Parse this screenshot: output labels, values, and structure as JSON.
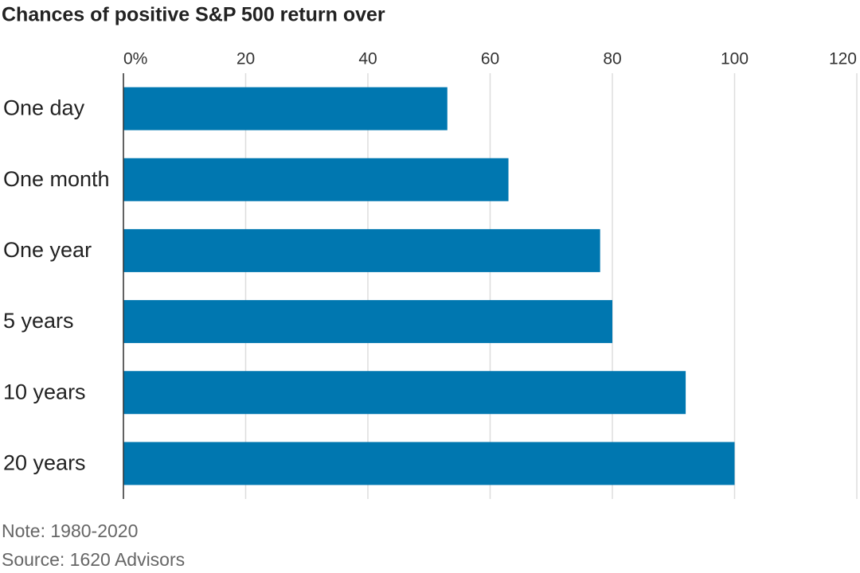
{
  "chart_data": {
    "type": "bar",
    "orientation": "horizontal",
    "title": "Chances of positive S&P 500 return over",
    "categories": [
      "One day",
      "One month",
      "One year",
      "5 years",
      "10 years",
      "20 years"
    ],
    "values": [
      53,
      63,
      78,
      80,
      92,
      100
    ],
    "color": "#0077b0",
    "xlim": [
      0,
      120
    ],
    "xticks": [
      {
        "value": 0,
        "label": "0%"
      },
      20,
      40,
      60,
      80,
      100,
      120
    ],
    "grid": true,
    "note": "Note: 1980-2020",
    "source": "Source: 1620 Advisors"
  }
}
